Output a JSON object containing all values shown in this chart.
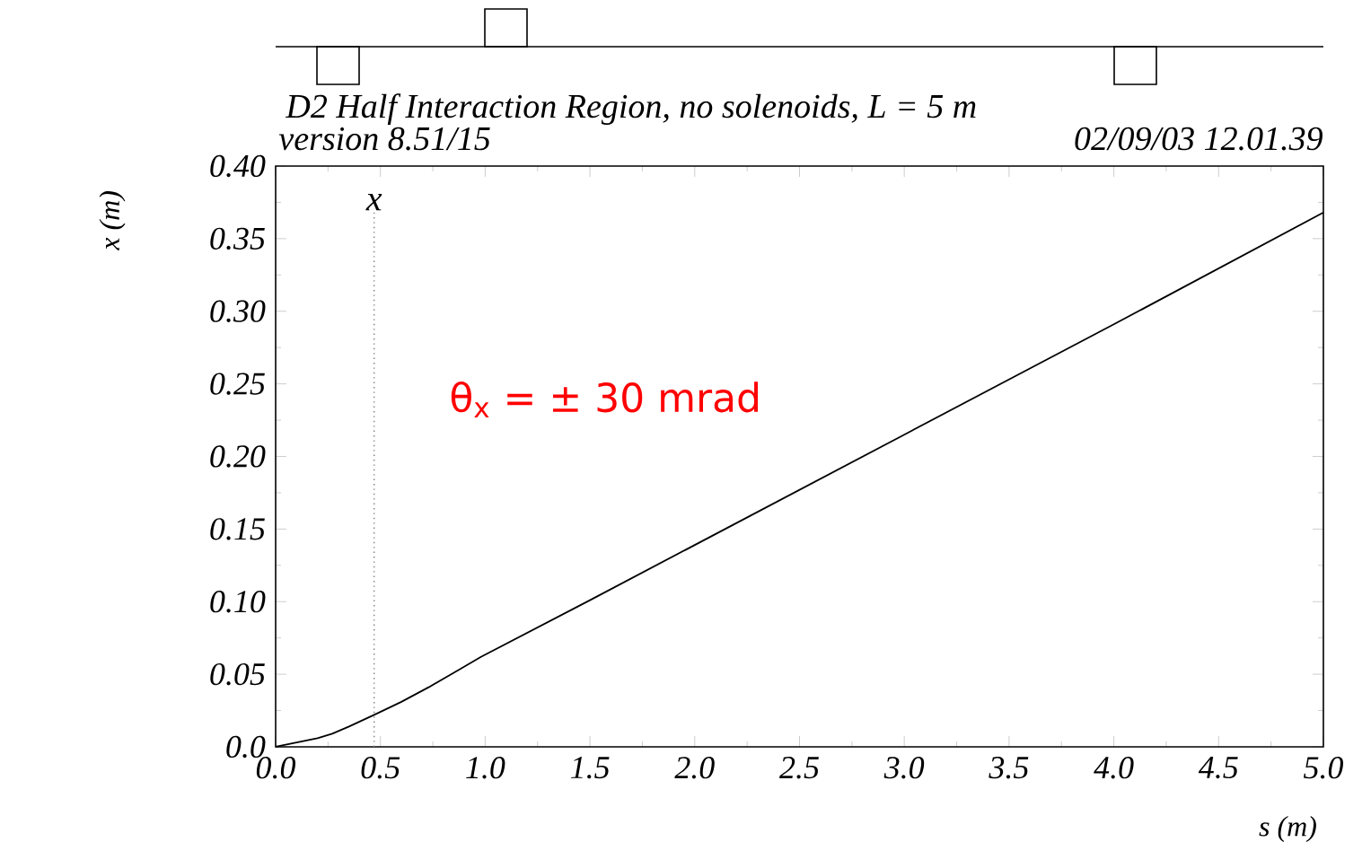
{
  "chart_data": {
    "type": "line",
    "title": "D2 Half Interaction Region, no solenoids, L = 5 m",
    "subtitle": "version 8.51/15",
    "xlabel": "s (m)",
    "ylabel": "x (m)",
    "annotations": [
      "02/09/03  12.01.39",
      "θ$_{x}$ = ± 30 mrad"
    ],
    "x": [
      0,
      0.1,
      0.2,
      0.27,
      0.35,
      0.47,
      0.6,
      0.73,
      0.85,
      0.98,
      1.5,
      2.0,
      3.0,
      4.0,
      5.0
    ],
    "values": [
      0,
      0.003,
      0.006,
      0.009,
      0.014,
      0.022,
      0.031,
      0.041,
      0.051,
      0.062,
      0.101,
      0.139,
      0.215,
      0.291,
      0.368
    ],
    "color": "#000000",
    "xlim": [
      0,
      5.0
    ],
    "ylim": [
      0,
      0.4
    ],
    "xticks": [
      {
        "value": 0,
        "label": "0.0"
      },
      {
        "value": 0.5,
        "label": "0.5"
      },
      {
        "value": 1.0,
        "label": "1.0"
      },
      {
        "value": 1.5,
        "label": "1.5"
      },
      {
        "value": 2.0,
        "label": "2.0"
      },
      {
        "value": 2.5,
        "label": "2.5"
      },
      {
        "value": 3.0,
        "label": "3.0"
      },
      {
        "value": 3.5,
        "label": "3.5"
      },
      {
        "value": 4.0,
        "label": "4.0"
      },
      {
        "value": 4.5,
        "label": "4.5"
      },
      {
        "value": 5.0,
        "label": "5.0"
      }
    ],
    "yticks": [
      {
        "value": 0,
        "label": "0.0"
      },
      {
        "value": 0.05,
        "label": "0.05"
      },
      {
        "value": 0.1,
        "label": "0.10"
      },
      {
        "value": 0.15,
        "label": "0.15"
      },
      {
        "value": 0.2,
        "label": "0.20"
      },
      {
        "value": 0.25,
        "label": "0.25"
      },
      {
        "value": 0.3,
        "label": "0.30"
      },
      {
        "value": 0.35,
        "label": "0.35"
      },
      {
        "value": 0.4,
        "label": "0.40"
      }
    ],
    "ref_lines": [
      {
        "axis": "x",
        "value": 0.47,
        "label": "x",
        "line_style": "dotted",
        "color": "#808080"
      }
    ],
    "grid": false,
    "marker": "none",
    "line_style": "solid"
  }
}
